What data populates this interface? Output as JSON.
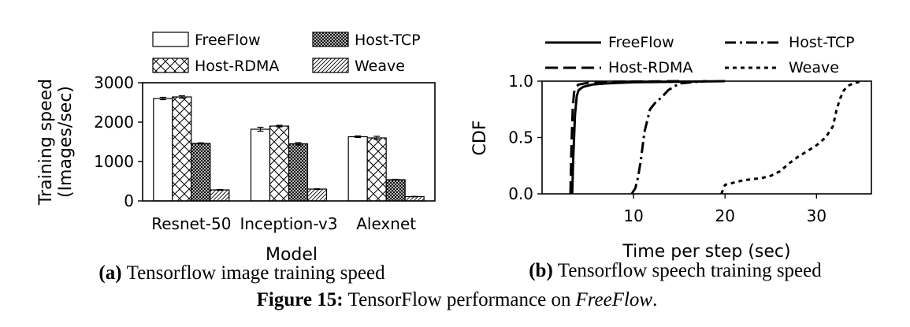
{
  "chart_data": [
    {
      "id": "a",
      "type": "bar",
      "title": "",
      "xlabel": "Model",
      "ylabel_lines": [
        "Training speed",
        "(Images/sec)"
      ],
      "ylim": [
        0,
        3000
      ],
      "yticks": [
        0,
        1000,
        2000,
        3000
      ],
      "categories": [
        "Resnet-50",
        "Inception-v3",
        "Alexnet"
      ],
      "series": [
        {
          "name": "FreeFlow",
          "pattern": "white",
          "values": [
            2600,
            1820,
            1630
          ],
          "errors": [
            30,
            50,
            20
          ]
        },
        {
          "name": "Host-RDMA",
          "pattern": "xhatch",
          "values": [
            2640,
            1900,
            1600
          ],
          "errors": [
            30,
            20,
            40
          ]
        },
        {
          "name": "Host-TCP",
          "pattern": "dense",
          "values": [
            1460,
            1450,
            540
          ],
          "errors": [
            15,
            30,
            10
          ]
        },
        {
          "name": "Weave",
          "pattern": "diag",
          "values": [
            280,
            300,
            110
          ],
          "errors": [
            10,
            10,
            5
          ]
        }
      ],
      "legend_position": "top"
    },
    {
      "id": "b",
      "type": "line",
      "title": "",
      "xlabel": "Time per step (sec)",
      "ylabel": "CDF",
      "xlim": [
        0,
        36
      ],
      "ylim": [
        0,
        1.0
      ],
      "xticks": [
        10,
        20,
        30
      ],
      "yticks": [
        0.0,
        0.5,
        1.0
      ],
      "ytick_labels": [
        "0.0",
        "0.5",
        "1.0"
      ],
      "series": [
        {
          "name": "FreeFlow",
          "dash": "solid",
          "x": [
            3.3,
            3.4,
            3.6,
            3.8,
            4.0,
            4.5,
            5.5,
            7,
            10,
            15,
            20
          ],
          "y": [
            0.0,
            0.3,
            0.7,
            0.87,
            0.92,
            0.95,
            0.97,
            0.98,
            0.99,
            0.995,
            1.0
          ]
        },
        {
          "name": "Host-TCP",
          "dash": "dashdot",
          "x": [
            9.8,
            10.2,
            10.5,
            10.8,
            11.2,
            11.8,
            12.5,
            13,
            13.8,
            15,
            17,
            18
          ],
          "y": [
            0.0,
            0.05,
            0.15,
            0.3,
            0.55,
            0.75,
            0.82,
            0.85,
            0.92,
            0.98,
            0.995,
            1.0
          ]
        },
        {
          "name": "Host-RDMA",
          "dash": "dashed",
          "x": [
            3.1,
            3.2,
            3.35,
            3.5,
            3.7,
            4.0,
            5.0,
            8,
            15
          ],
          "y": [
            0.0,
            0.4,
            0.75,
            0.9,
            0.95,
            0.97,
            0.985,
            0.995,
            1.0
          ]
        },
        {
          "name": "Weave",
          "dash": "dotted",
          "x": [
            19.6,
            20.0,
            21,
            22,
            23,
            24,
            25,
            26,
            27,
            28,
            29,
            30,
            31,
            31.8,
            32.2,
            32.6,
            33,
            33.5,
            34,
            34.5,
            35
          ],
          "y": [
            0.0,
            0.08,
            0.1,
            0.12,
            0.13,
            0.14,
            0.16,
            0.2,
            0.27,
            0.33,
            0.38,
            0.43,
            0.5,
            0.6,
            0.75,
            0.85,
            0.92,
            0.96,
            0.98,
            0.99,
            1.0
          ]
        }
      ],
      "legend_position": "top"
    }
  ],
  "captions": {
    "a_label": "(a)",
    "a_text": "Tensorflow image training speed",
    "b_label": "(b)",
    "b_text": "Tensorflow speech training speed",
    "fig_label": "Figure 15:",
    "fig_text_pre": "TensorFlow performance on",
    "fig_text_em": "FreeFlow",
    "fig_text_post": "."
  }
}
